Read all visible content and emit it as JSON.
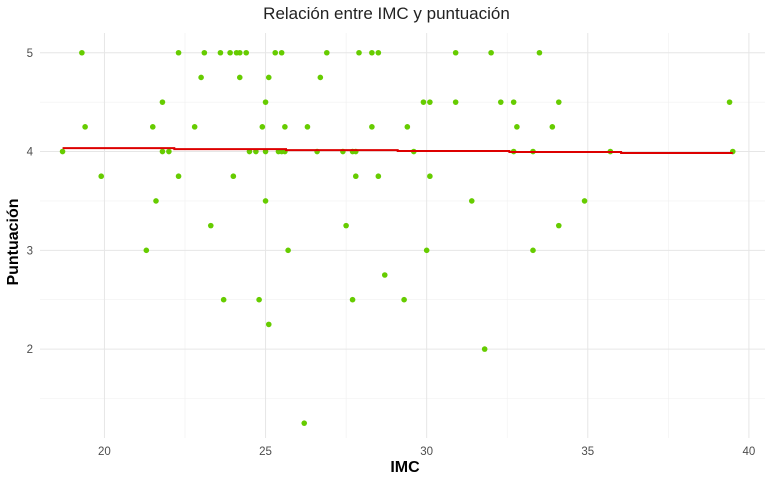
{
  "chart_data": {
    "type": "scatter",
    "title": "Relación entre IMC y puntuación",
    "xlabel": "IMC",
    "ylabel": "Puntuación",
    "xlim": [
      18,
      40.5
    ],
    "ylim": [
      1.1,
      5.2
    ],
    "x_ticks": [
      20,
      25,
      30,
      35,
      40
    ],
    "y_ticks": [
      2,
      3,
      4,
      5
    ],
    "grid": true,
    "point_color": "#66cc00",
    "trend_color": "#dd0000",
    "points": [
      [
        18.7,
        4.0
      ],
      [
        19.3,
        5.0
      ],
      [
        19.4,
        4.25
      ],
      [
        19.9,
        3.75
      ],
      [
        21.3,
        3.0
      ],
      [
        21.5,
        4.25
      ],
      [
        21.6,
        3.5
      ],
      [
        21.8,
        4.5
      ],
      [
        21.8,
        4.0
      ],
      [
        22.0,
        4.0
      ],
      [
        22.3,
        5.0
      ],
      [
        22.3,
        3.75
      ],
      [
        22.8,
        4.25
      ],
      [
        23.0,
        4.75
      ],
      [
        23.1,
        5.0
      ],
      [
        23.3,
        3.25
      ],
      [
        23.6,
        5.0
      ],
      [
        23.7,
        2.5
      ],
      [
        23.9,
        5.0
      ],
      [
        24.0,
        3.75
      ],
      [
        24.1,
        5.0
      ],
      [
        24.2,
        4.75
      ],
      [
        24.2,
        5.0
      ],
      [
        24.4,
        5.0
      ],
      [
        24.5,
        4.0
      ],
      [
        24.7,
        4.0
      ],
      [
        24.8,
        2.5
      ],
      [
        24.9,
        4.25
      ],
      [
        25.0,
        4.5
      ],
      [
        25.0,
        4.0
      ],
      [
        25.0,
        3.5
      ],
      [
        25.1,
        2.25
      ],
      [
        25.1,
        4.75
      ],
      [
        25.3,
        5.0
      ],
      [
        25.4,
        4.0
      ],
      [
        25.5,
        5.0
      ],
      [
        25.5,
        4.0
      ],
      [
        25.6,
        4.25
      ],
      [
        25.6,
        4.0
      ],
      [
        25.7,
        3.0
      ],
      [
        26.2,
        1.25
      ],
      [
        26.3,
        4.25
      ],
      [
        26.6,
        4.0
      ],
      [
        26.7,
        4.75
      ],
      [
        26.9,
        5.0
      ],
      [
        27.4,
        4.0
      ],
      [
        27.5,
        3.25
      ],
      [
        27.7,
        2.5
      ],
      [
        27.7,
        4.0
      ],
      [
        27.8,
        3.75
      ],
      [
        27.8,
        4.0
      ],
      [
        27.9,
        5.0
      ],
      [
        28.3,
        4.25
      ],
      [
        28.3,
        5.0
      ],
      [
        28.5,
        5.0
      ],
      [
        28.5,
        3.75
      ],
      [
        28.7,
        2.75
      ],
      [
        29.3,
        2.5
      ],
      [
        29.4,
        4.25
      ],
      [
        29.6,
        4.0
      ],
      [
        29.9,
        4.5
      ],
      [
        30.0,
        3.0
      ],
      [
        30.1,
        4.5
      ],
      [
        30.1,
        3.75
      ],
      [
        30.9,
        5.0
      ],
      [
        30.9,
        4.5
      ],
      [
        31.4,
        3.5
      ],
      [
        31.8,
        2.0
      ],
      [
        32.0,
        5.0
      ],
      [
        32.3,
        4.5
      ],
      [
        32.7,
        4.5
      ],
      [
        32.7,
        4.0
      ],
      [
        32.8,
        4.25
      ],
      [
        33.3,
        3.0
      ],
      [
        33.3,
        4.0
      ],
      [
        33.5,
        5.0
      ],
      [
        33.9,
        4.25
      ],
      [
        34.1,
        4.5
      ],
      [
        34.1,
        3.25
      ],
      [
        34.9,
        3.5
      ],
      [
        35.7,
        4.0
      ],
      [
        39.4,
        4.5
      ],
      [
        39.5,
        4.0
      ]
    ],
    "trend_line": {
      "x": [
        18.7,
        39.5
      ],
      "y": [
        4.04,
        3.98
      ]
    }
  }
}
